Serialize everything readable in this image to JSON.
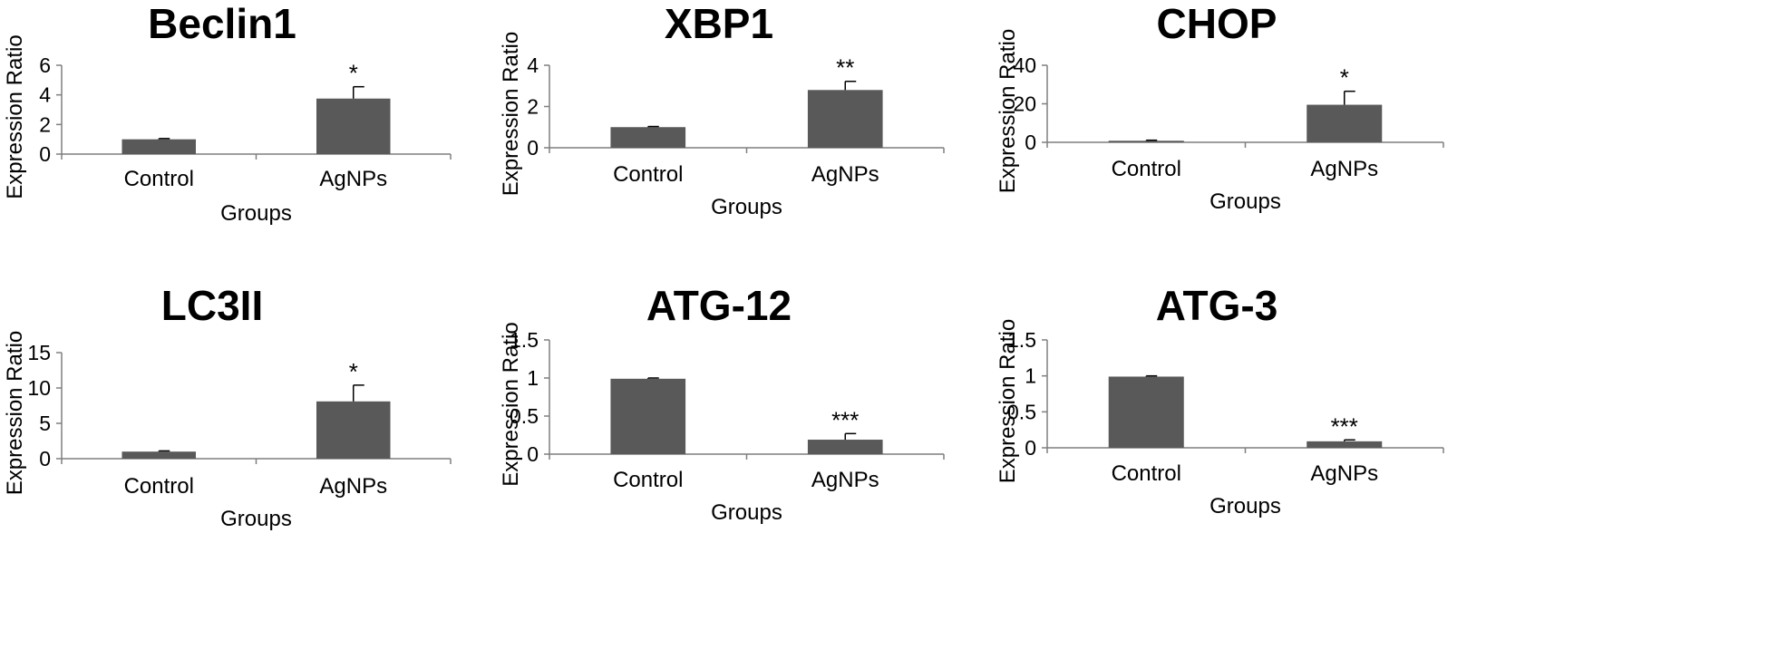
{
  "colors": {
    "bar": "#595959",
    "axis": "#7f7f7f"
  },
  "chart_data": [
    {
      "type": "bar",
      "title": "Beclin1",
      "xlabel": "Groups",
      "ylabel": "Expression Ratio",
      "categories": [
        "Control",
        "AgNPs"
      ],
      "values": [
        1.0,
        3.75
      ],
      "errors": [
        0.05,
        0.8
      ],
      "significance": [
        "",
        "*"
      ],
      "ylim": [
        0,
        6
      ],
      "yticks": [
        0,
        2,
        4,
        6
      ],
      "ytick_labels": [
        "0",
        "2",
        "4",
        "6"
      ]
    },
    {
      "type": "bar",
      "title": "XBP1",
      "xlabel": "Groups",
      "ylabel": "Expression Ratio",
      "categories": [
        "Control",
        "AgNPs"
      ],
      "values": [
        1.0,
        2.8
      ],
      "errors": [
        0.03,
        0.42
      ],
      "significance": [
        "",
        "**"
      ],
      "ylim": [
        0,
        4
      ],
      "yticks": [
        0,
        2,
        4
      ],
      "ytick_labels": [
        "0",
        "2",
        "4"
      ]
    },
    {
      "type": "bar",
      "title": "CHOP",
      "xlabel": "Groups",
      "ylabel": "Expression Ratio",
      "categories": [
        "Control",
        "AgNPs"
      ],
      "values": [
        0.8,
        19.5
      ],
      "errors": [
        0.3,
        7.0
      ],
      "significance": [
        "",
        "*"
      ],
      "ylim": [
        0,
        40
      ],
      "yticks": [
        0,
        20,
        40
      ],
      "ytick_labels": [
        "0",
        "20",
        "40"
      ]
    },
    {
      "type": "bar",
      "title": "LC3II",
      "xlabel": "Groups",
      "ylabel": "Expression Ratio",
      "categories": [
        "Control",
        "AgNPs"
      ],
      "values": [
        1.0,
        8.1
      ],
      "errors": [
        0.1,
        2.3
      ],
      "significance": [
        "",
        "*"
      ],
      "ylim": [
        0,
        15
      ],
      "yticks": [
        0,
        5,
        10,
        15
      ],
      "ytick_labels": [
        "0",
        "5",
        "10",
        "15"
      ]
    },
    {
      "type": "bar",
      "title": "ATG-12",
      "xlabel": "Groups",
      "ylabel": "Expression Ratio",
      "categories": [
        "Control",
        "AgNPs"
      ],
      "values": [
        0.99,
        0.19
      ],
      "errors": [
        0.01,
        0.08
      ],
      "significance": [
        "",
        "***"
      ],
      "ylim": [
        0,
        1.5
      ],
      "yticks": [
        0,
        0.5,
        1,
        1.5
      ],
      "ytick_labels": [
        "0",
        "0.5",
        "1",
        "1.5"
      ]
    },
    {
      "type": "bar",
      "title": "ATG-3",
      "xlabel": "Groups",
      "ylabel": "Expression Ratio",
      "categories": [
        "Control",
        "AgNPs"
      ],
      "values": [
        0.99,
        0.09
      ],
      "errors": [
        0.01,
        0.02
      ],
      "significance": [
        "",
        "***"
      ],
      "ylim": [
        0,
        1.5
      ],
      "yticks": [
        0,
        0.5,
        1,
        1.5
      ],
      "ytick_labels": [
        "0",
        "0.5",
        "1",
        "1.5"
      ]
    }
  ]
}
